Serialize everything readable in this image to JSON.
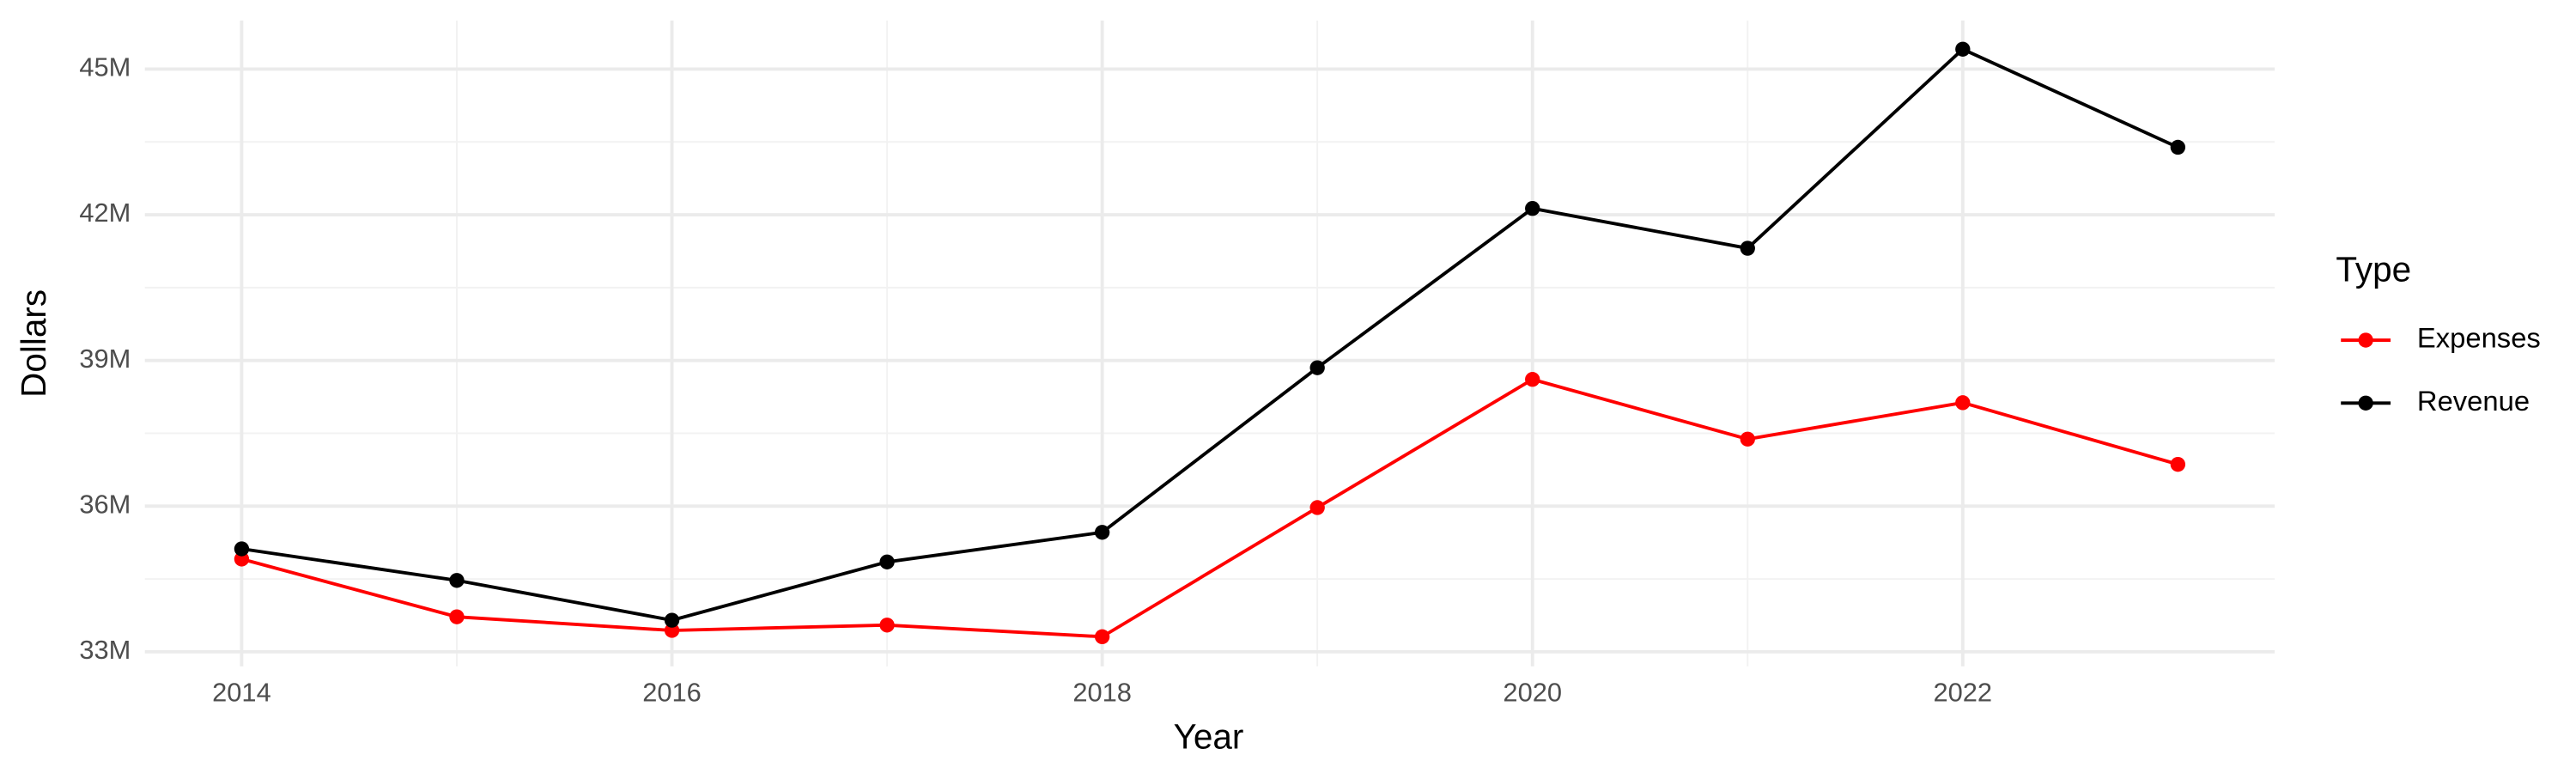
{
  "chart_data": {
    "type": "line",
    "x_label": "Year",
    "y_label": "Dollars",
    "legend_title": "Type",
    "x": [
      2014,
      2015,
      2016,
      2017,
      2018,
      2019,
      2020,
      2021,
      2022,
      2023
    ],
    "series": [
      {
        "name": "Expenses",
        "color": "#ff0000",
        "values": [
          34910000,
          33720000,
          33440000,
          33550000,
          33310000,
          35970000,
          38610000,
          37380000,
          38130000,
          36860000
        ]
      },
      {
        "name": "Revenue",
        "color": "#000000",
        "values": [
          35120000,
          34470000,
          33650000,
          34850000,
          35460000,
          38850000,
          42130000,
          41310000,
          45410000,
          43390000
        ]
      }
    ],
    "xlim": [
      2013.55,
      2023.45
    ],
    "xticks": [
      2014,
      2016,
      2018,
      2020,
      2022
    ],
    "ylim": [
      32700000,
      46000000
    ],
    "yticks": [
      {
        "value": 33000000,
        "label": "33M"
      },
      {
        "value": 36000000,
        "label": "36M"
      },
      {
        "value": 39000000,
        "label": "39M"
      },
      {
        "value": 42000000,
        "label": "42M"
      },
      {
        "value": 45000000,
        "label": "45M"
      }
    ],
    "grid": true,
    "legend_position": "right"
  }
}
